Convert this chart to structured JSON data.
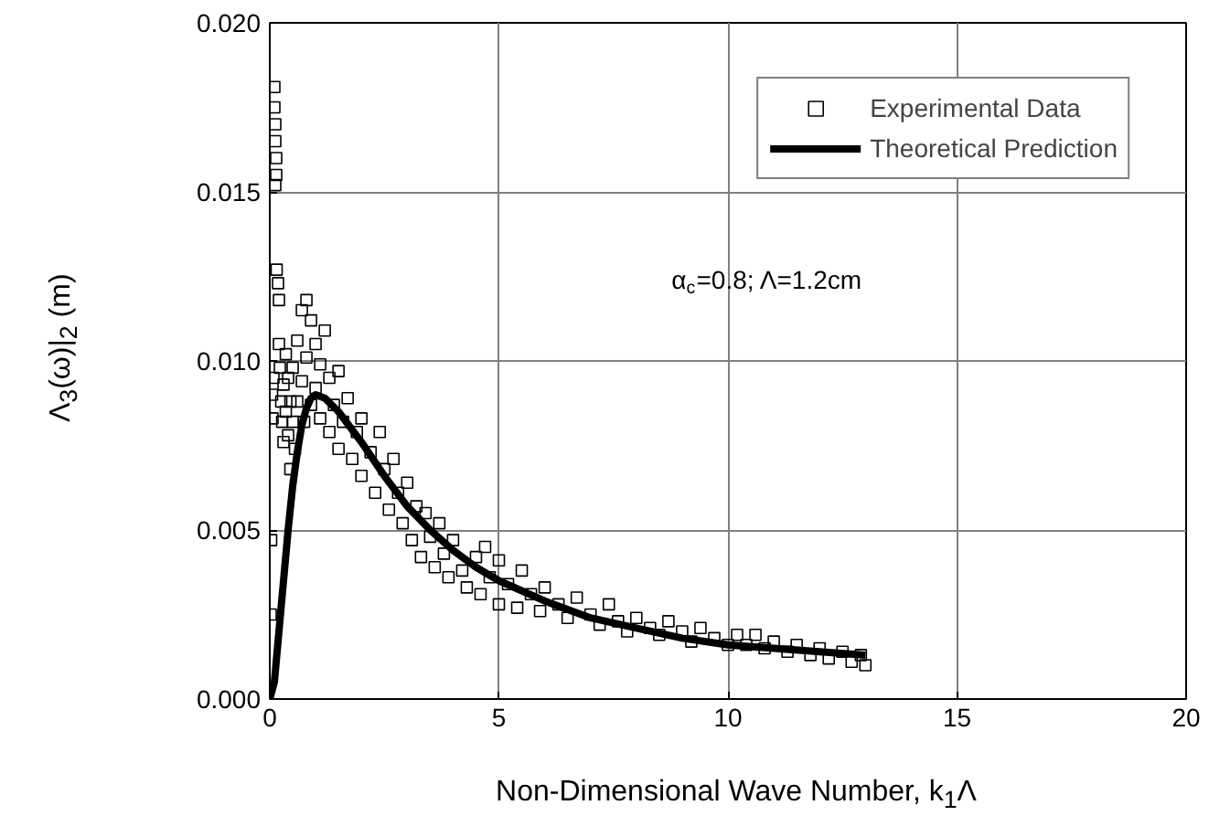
{
  "chart_data": {
    "type": "scatter",
    "xlabel": "Non-Dimensional Wave Number, k$_{1}$Λ",
    "ylabel": "Λ$_{3}$(ω)|$_{2}$ (m)",
    "annotations": [
      "α$_{c}$=0.8; Λ=1.2cm"
    ],
    "xlim": [
      0,
      20
    ],
    "xticks": [
      0,
      5,
      10,
      15,
      20
    ],
    "ylim": [
      0,
      0.02
    ],
    "yticks": [
      {
        "value": 0,
        "label": "0.000"
      },
      {
        "value": 0.005,
        "label": "0.005"
      },
      {
        "value": 0.01,
        "label": "0.010"
      },
      {
        "value": 0.015,
        "label": "0.015"
      },
      {
        "value": 0.02,
        "label": "0.020"
      }
    ],
    "grid": true,
    "legend": "top right",
    "series": [
      {
        "name": "Experimental Data",
        "marker": "square",
        "color": "#000000",
        "x": [
          0.02,
          0.03,
          0.05,
          0.06,
          0.08,
          0.1,
          0.1,
          0.12,
          0.12,
          0.14,
          0.14,
          0.12,
          0.15,
          0.18,
          0.2,
          0.2,
          0.22,
          0.25,
          0.27,
          0.3,
          0.3,
          0.35,
          0.35,
          0.4,
          0.4,
          0.45,
          0.45,
          0.5,
          0.5,
          0.55,
          0.6,
          0.6,
          0.7,
          0.7,
          0.75,
          0.8,
          0.8,
          0.9,
          0.9,
          1.0,
          1.0,
          1.1,
          1.1,
          1.2,
          1.3,
          1.3,
          1.4,
          1.5,
          1.5,
          1.6,
          1.7,
          1.8,
          1.9,
          2.0,
          2.0,
          2.2,
          2.3,
          2.4,
          2.5,
          2.6,
          2.7,
          2.8,
          2.9,
          3.0,
          3.1,
          3.2,
          3.3,
          3.4,
          3.5,
          3.6,
          3.7,
          3.8,
          3.9,
          4.0,
          4.2,
          4.3,
          4.5,
          4.6,
          4.7,
          4.8,
          5.0,
          5.0,
          5.2,
          5.4,
          5.5,
          5.7,
          5.9,
          6.0,
          6.3,
          6.5,
          6.7,
          7.0,
          7.2,
          7.4,
          7.6,
          7.8,
          8.0,
          8.3,
          8.5,
          8.7,
          9.0,
          9.2,
          9.4,
          9.7,
          10.0,
          10.2,
          10.4,
          10.6,
          10.8,
          11.0,
          11.3,
          11.5,
          11.8,
          12.0,
          12.2,
          12.5,
          12.7,
          12.9,
          13.0
        ],
        "values": [
          0.0025,
          0.0047,
          0.009,
          0.0083,
          0.0095,
          0.0181,
          0.0175,
          0.017,
          0.0165,
          0.016,
          0.0155,
          0.0152,
          0.0127,
          0.0123,
          0.0118,
          0.0105,
          0.0098,
          0.0088,
          0.0082,
          0.0093,
          0.0076,
          0.0102,
          0.0085,
          0.0095,
          0.0078,
          0.0088,
          0.0068,
          0.0098,
          0.0082,
          0.0074,
          0.0106,
          0.0088,
          0.0115,
          0.0094,
          0.0082,
          0.0118,
          0.0101,
          0.0112,
          0.0087,
          0.0105,
          0.0092,
          0.0099,
          0.0083,
          0.0109,
          0.0095,
          0.0079,
          0.0087,
          0.0097,
          0.0074,
          0.0082,
          0.0089,
          0.0071,
          0.0079,
          0.0083,
          0.0066,
          0.0073,
          0.0061,
          0.0079,
          0.0068,
          0.0056,
          0.0071,
          0.0061,
          0.0052,
          0.0064,
          0.0047,
          0.0057,
          0.0042,
          0.0055,
          0.0048,
          0.0039,
          0.0052,
          0.0043,
          0.0036,
          0.0047,
          0.0038,
          0.0033,
          0.0042,
          0.0031,
          0.0045,
          0.0036,
          0.0028,
          0.0041,
          0.0034,
          0.0027,
          0.0038,
          0.0031,
          0.0026,
          0.0033,
          0.0028,
          0.0024,
          0.003,
          0.0025,
          0.0022,
          0.0028,
          0.0023,
          0.002,
          0.0024,
          0.0021,
          0.0019,
          0.0023,
          0.002,
          0.0017,
          0.0021,
          0.0018,
          0.0016,
          0.0019,
          0.0016,
          0.0019,
          0.0015,
          0.0017,
          0.0014,
          0.0016,
          0.0013,
          0.0015,
          0.0012,
          0.0014,
          0.0011,
          0.0013,
          0.001
        ]
      },
      {
        "name": "Theoretical Prediction",
        "type": "line",
        "line_style": "solid",
        "color": "#000000",
        "x": [
          0,
          0.1,
          0.2,
          0.3,
          0.4,
          0.5,
          0.6,
          0.7,
          0.8,
          0.9,
          1.0,
          1.2,
          1.5,
          2,
          2.5,
          3,
          3.5,
          4,
          4.5,
          5,
          6,
          7,
          8,
          9,
          10,
          11,
          12,
          13
        ],
        "values": [
          0,
          0.0005,
          0.002,
          0.0035,
          0.005,
          0.0063,
          0.0073,
          0.0081,
          0.0086,
          0.0089,
          0.009,
          0.0089,
          0.0085,
          0.0076,
          0.0066,
          0.0057,
          0.005,
          0.0044,
          0.0039,
          0.0035,
          0.0029,
          0.0024,
          0.0021,
          0.0018,
          0.0016,
          0.0015,
          0.0014,
          0.0013
        ]
      }
    ]
  }
}
